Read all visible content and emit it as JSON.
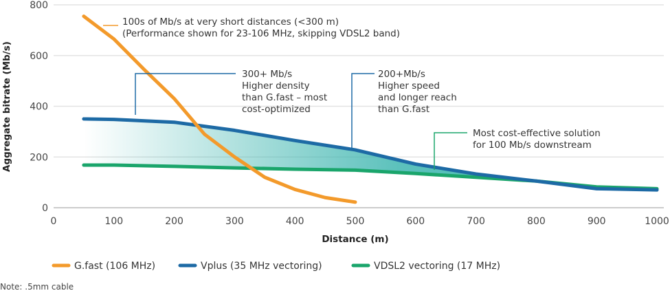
{
  "chart_data": {
    "type": "line",
    "xlabel": "Distance (m)",
    "ylabel": "Aggregate bitrate (Mb/s)",
    "xlim": [
      0,
      1000
    ],
    "ylim": [
      0,
      800
    ],
    "xticks": [
      0,
      100,
      200,
      300,
      400,
      500,
      600,
      700,
      800,
      900,
      1000
    ],
    "yticks": [
      0,
      200,
      400,
      600,
      800
    ],
    "grid": "horizontal",
    "legend_position": "bottom",
    "series": [
      {
        "name": "G.fast (106 MHz)",
        "color": "#f39a2b",
        "x": [
          50,
          100,
          150,
          200,
          250,
          300,
          350,
          400,
          450,
          500
        ],
        "y": [
          755,
          665,
          545,
          430,
          290,
          200,
          120,
          72,
          40,
          22
        ]
      },
      {
        "name": "Vplus (35 MHz vectoring)",
        "color": "#1d6aa5",
        "x": [
          50,
          100,
          200,
          300,
          400,
          500,
          600,
          700,
          800,
          900,
          1000
        ],
        "y": [
          350,
          348,
          337,
          305,
          265,
          228,
          172,
          133,
          105,
          75,
          70
        ]
      },
      {
        "name": "VDSL2 vectoring (17 MHz)",
        "color": "#1aa56b",
        "x": [
          50,
          100,
          200,
          300,
          400,
          500,
          600,
          700,
          800,
          900,
          1000
        ],
        "y": [
          168,
          168,
          163,
          157,
          152,
          148,
          135,
          120,
          105,
          82,
          75
        ]
      }
    ],
    "shaded_region": {
      "between": [
        "Vplus (35 MHz vectoring)",
        "VDSL2 vectoring (17 MHz)"
      ],
      "color": "#3fb6b0"
    },
    "annotations": [
      {
        "lines": [
          "100s of Mb/s at very short distances (<300 m)",
          "(Performance shown for 23-106 MHz, skipping VDSL2 band)"
        ],
        "color": "#f39a2b"
      },
      {
        "lines": [
          "300+ Mb/s",
          "Higher density",
          "than G.fast – most",
          "cost-optimized"
        ],
        "color": "#1d6aa5"
      },
      {
        "lines": [
          "200+Mb/s",
          "Higher speed",
          "and longer reach",
          "than G.fast"
        ],
        "color": "#1d6aa5"
      },
      {
        "lines": [
          "Most cost-effective solution",
          "for 100 Mb/s downstream"
        ],
        "color": "#1aa56b"
      }
    ],
    "note": "Note: .5mm cable"
  }
}
